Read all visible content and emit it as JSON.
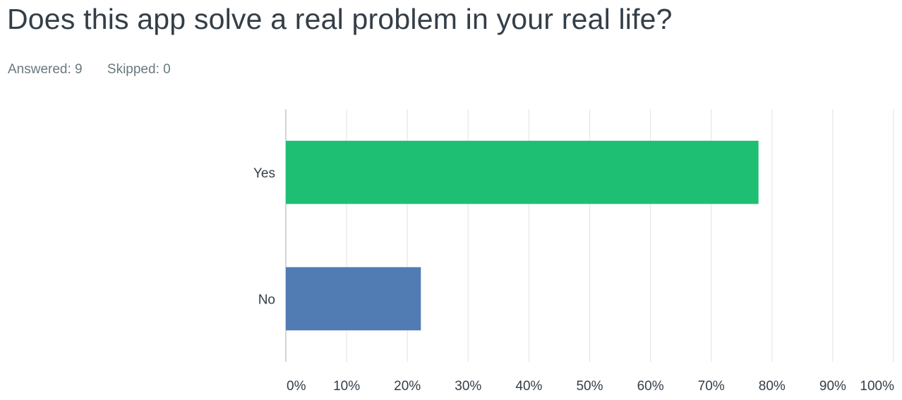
{
  "question": {
    "title": "Does this app solve a real problem in your real life?",
    "answered_label": "Answered: 9",
    "skipped_label": "Skipped: 0"
  },
  "chart_data": {
    "type": "bar",
    "orientation": "horizontal",
    "categories": [
      "Yes",
      "No"
    ],
    "values": [
      77.78,
      22.22
    ],
    "colors": [
      "#1fbf73",
      "#507cb3"
    ],
    "xlim": [
      0,
      100
    ],
    "x_ticks": [
      "0%",
      "10%",
      "20%",
      "30%",
      "40%",
      "50%",
      "60%",
      "70%",
      "80%",
      "90%",
      "100%"
    ],
    "grid": true,
    "legend": false,
    "title": "",
    "xlabel": "",
    "ylabel": ""
  }
}
